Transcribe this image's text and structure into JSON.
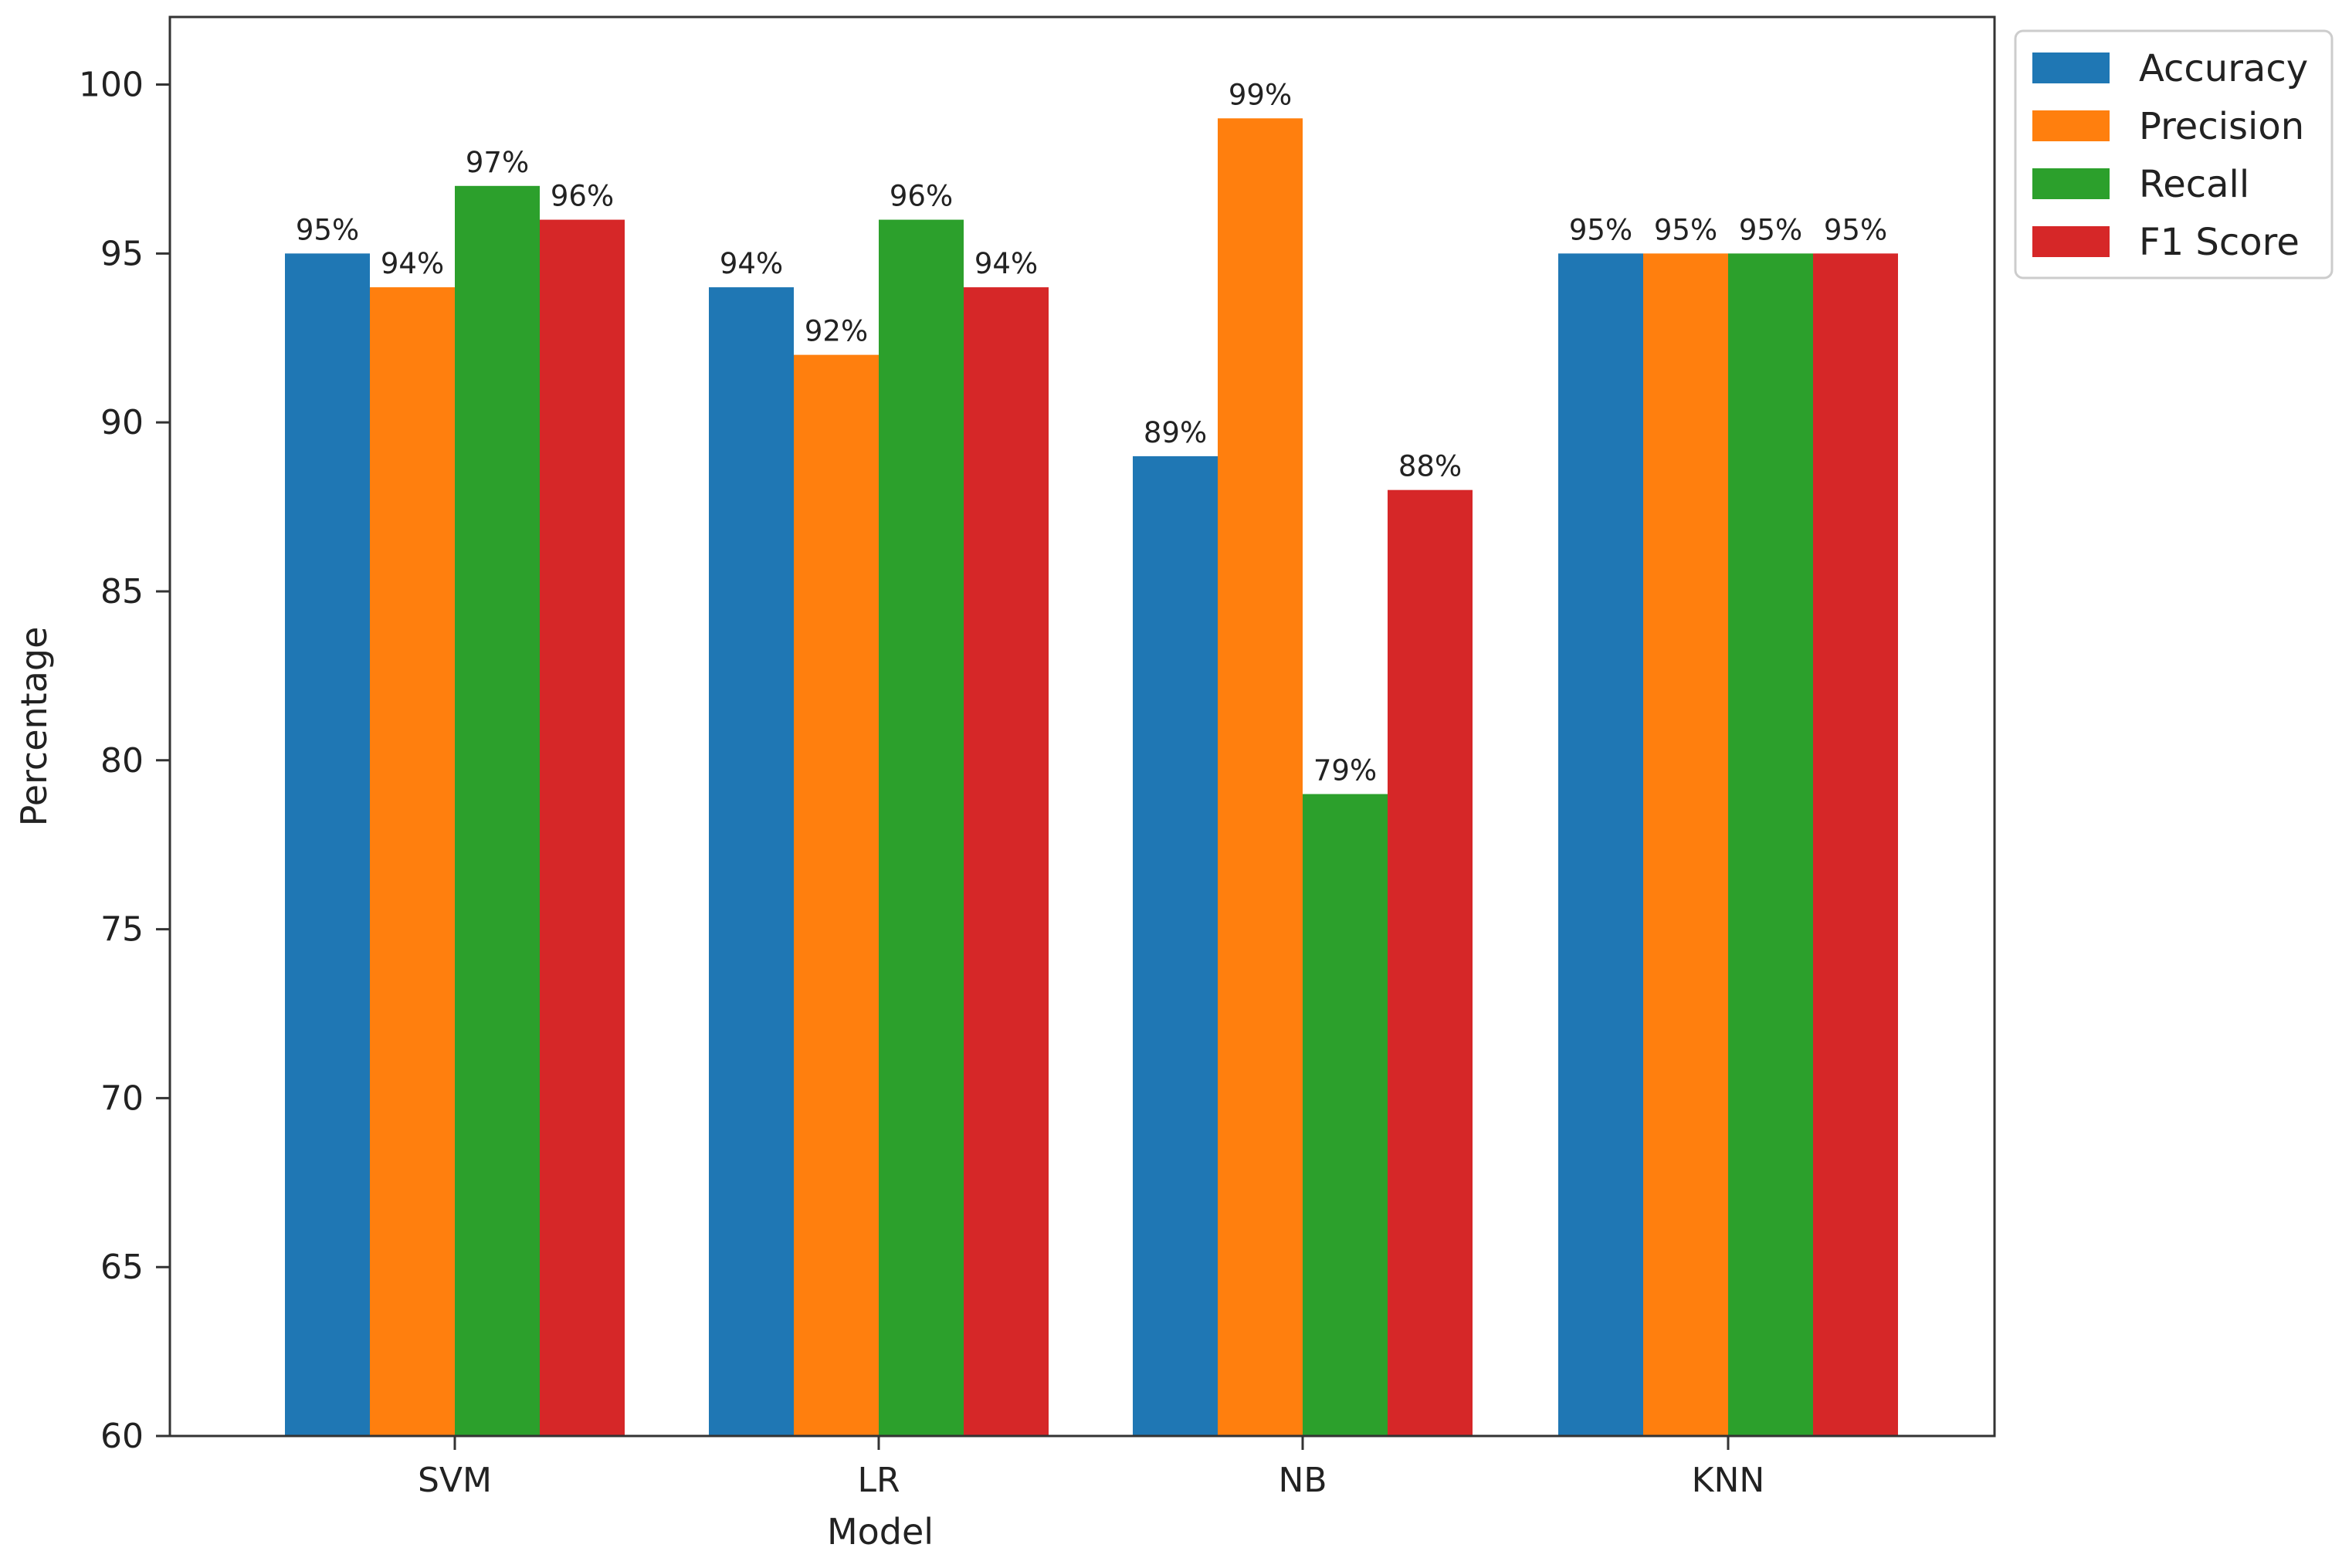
{
  "chart_data": {
    "type": "bar",
    "title": "",
    "xlabel": "Model",
    "ylabel": "Percentage",
    "categories": [
      "SVM",
      "LR",
      "NB",
      "KNN"
    ],
    "series": [
      {
        "name": "Accuracy",
        "color": "#1f77b4",
        "values": [
          95,
          94,
          89,
          95
        ],
        "labels": [
          "95%",
          "94%",
          "89%",
          "95%"
        ]
      },
      {
        "name": "Precision",
        "color": "#ff7f0e",
        "values": [
          94,
          92,
          99,
          95
        ],
        "labels": [
          "94%",
          "92%",
          "99%",
          "95%"
        ]
      },
      {
        "name": "Recall",
        "color": "#2ca02c",
        "values": [
          97,
          96,
          79,
          95
        ],
        "labels": [
          "97%",
          "96%",
          "79%",
          "95%"
        ]
      },
      {
        "name": "F1 Score",
        "color": "#d62728",
        "values": [
          96,
          94,
          88,
          95
        ],
        "labels": [
          "96%",
          "94%",
          "88%",
          "95%"
        ]
      }
    ],
    "ylim": [
      60,
      102
    ],
    "yticks": [
      60,
      65,
      70,
      75,
      80,
      85,
      90,
      95,
      100
    ],
    "grid": false,
    "legend": "outside-top-right"
  }
}
